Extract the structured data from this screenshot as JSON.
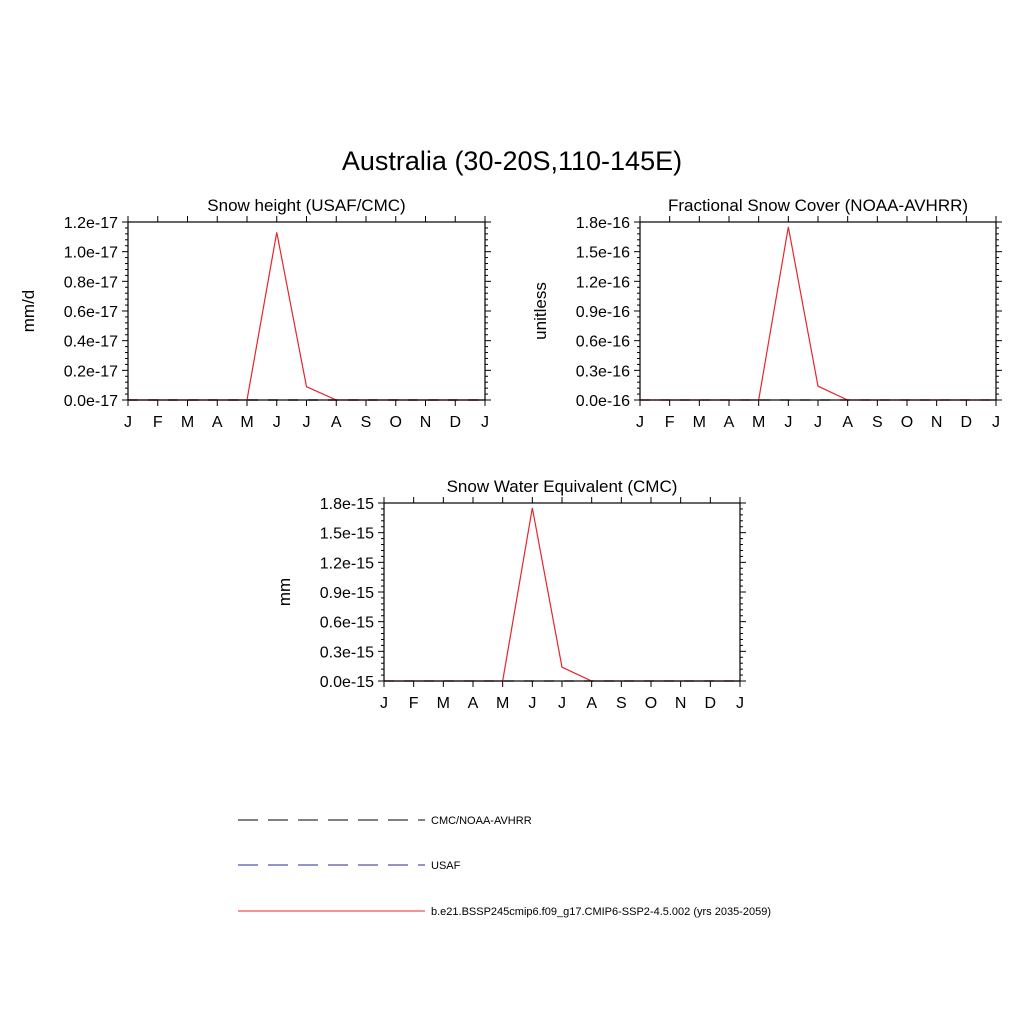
{
  "figure": {
    "title": "Australia (30-20S,110-145E)"
  },
  "chart_data": [
    {
      "type": "line",
      "title": "Snow height (USAF/CMC)",
      "xlabel": "",
      "ylabel": "mm/d",
      "x_ticklabels": [
        "J",
        "F",
        "M",
        "A",
        "M",
        "J",
        "J",
        "A",
        "S",
        "O",
        "N",
        "D",
        "J"
      ],
      "y_ticklabels": [
        "0.0e-17",
        "0.2e-17",
        "0.4e-17",
        "0.6e-17",
        "0.8e-17",
        "1.0e-17",
        "1.2e-17"
      ],
      "ylim": [
        0,
        1.2e-17
      ],
      "y_ticks": [
        0,
        2e-18,
        4e-18,
        6e-18,
        8e-18,
        1e-17,
        1.2e-17
      ],
      "x": [
        1,
        2,
        3,
        4,
        5,
        6,
        7,
        8,
        9,
        10,
        11,
        12,
        13
      ],
      "xlim": [
        1,
        13
      ],
      "grid": false,
      "series": [
        {
          "name": "b.e21.BSSP245cmip6.f09_g17.CMIP6-SSP2-4.5.002 (yrs 2035-2059)",
          "style": "solid",
          "color": "#e8252b",
          "values": [
            0,
            0,
            0,
            0,
            0,
            1.13e-17,
            9e-19,
            0,
            0,
            0,
            0,
            0,
            0
          ]
        },
        {
          "name": "CMC/NOAA-AVHRR",
          "style": "dash",
          "color": "#000000",
          "values": [
            0,
            0,
            0,
            0,
            0,
            0,
            0,
            0,
            0,
            0,
            0,
            0,
            0
          ]
        },
        {
          "name": "USAF",
          "style": "dash",
          "color": "#2a2a9a",
          "values": [
            0,
            0,
            0,
            0,
            0,
            0,
            0,
            0,
            0,
            0,
            0,
            0,
            0
          ]
        }
      ]
    },
    {
      "type": "line",
      "title": "Fractional Snow Cover (NOAA-AVHRR)",
      "xlabel": "",
      "ylabel": "unitless",
      "x_ticklabels": [
        "J",
        "F",
        "M",
        "A",
        "M",
        "J",
        "J",
        "A",
        "S",
        "O",
        "N",
        "D",
        "J"
      ],
      "y_ticklabels": [
        "0.0e-16",
        "0.3e-16",
        "0.6e-16",
        "0.9e-16",
        "1.2e-16",
        "1.5e-16",
        "1.8e-16"
      ],
      "ylim": [
        0,
        1.8e-16
      ],
      "y_ticks": [
        0,
        3e-17,
        6e-17,
        9e-17,
        1.2e-16,
        1.5e-16,
        1.8e-16
      ],
      "x": [
        1,
        2,
        3,
        4,
        5,
        6,
        7,
        8,
        9,
        10,
        11,
        12,
        13
      ],
      "xlim": [
        1,
        13
      ],
      "grid": false,
      "series": [
        {
          "name": "b.e21.BSSP245cmip6.f09_g17.CMIP6-SSP2-4.5.002 (yrs 2035-2059)",
          "style": "solid",
          "color": "#e8252b",
          "values": [
            0,
            0,
            0,
            0,
            0,
            1.75e-16,
            1.4e-17,
            0,
            0,
            0,
            0,
            0,
            0
          ]
        },
        {
          "name": "CMC/NOAA-AVHRR",
          "style": "dash",
          "color": "#000000",
          "values": [
            0,
            0,
            0,
            0,
            0,
            0,
            0,
            0,
            0,
            0,
            0,
            0,
            0
          ]
        }
      ]
    },
    {
      "type": "line",
      "title": "Snow Water Equivalent (CMC)",
      "xlabel": "",
      "ylabel": "mm",
      "x_ticklabels": [
        "J",
        "F",
        "M",
        "A",
        "M",
        "J",
        "J",
        "A",
        "S",
        "O",
        "N",
        "D",
        "J"
      ],
      "y_ticklabels": [
        "0.0e-15",
        "0.3e-15",
        "0.6e-15",
        "0.9e-15",
        "1.2e-15",
        "1.5e-15",
        "1.8e-15"
      ],
      "ylim": [
        0,
        1.8e-15
      ],
      "y_ticks": [
        0,
        3e-16,
        6e-16,
        9e-16,
        1.2e-15,
        1.5e-15,
        1.8e-15
      ],
      "x": [
        1,
        2,
        3,
        4,
        5,
        6,
        7,
        8,
        9,
        10,
        11,
        12,
        13
      ],
      "xlim": [
        1,
        13
      ],
      "grid": false,
      "series": [
        {
          "name": "b.e21.BSSP245cmip6.f09_g17.CMIP6-SSP2-4.5.002 (yrs 2035-2059)",
          "style": "solid",
          "color": "#e8252b",
          "values": [
            0,
            0,
            0,
            0,
            0,
            1.75e-15,
            1.4e-16,
            0,
            0,
            0,
            0,
            0,
            0
          ]
        },
        {
          "name": "CMC/NOAA-AVHRR",
          "style": "dash",
          "color": "#000000",
          "values": [
            0,
            0,
            0,
            0,
            0,
            0,
            0,
            0,
            0,
            0,
            0,
            0,
            0
          ]
        }
      ]
    }
  ],
  "legend": {
    "entries": [
      {
        "label": "CMC/NOAA-AVHRR",
        "style": "dash",
        "color": "#000000"
      },
      {
        "label": "USAF",
        "style": "dash",
        "color": "#2a2a9a"
      },
      {
        "label": "b.e21.BSSP245cmip6.f09_g17.CMIP6-SSP2-4.5.002 (yrs 2035-2059)",
        "style": "solid",
        "color": "#e8252b"
      }
    ]
  }
}
